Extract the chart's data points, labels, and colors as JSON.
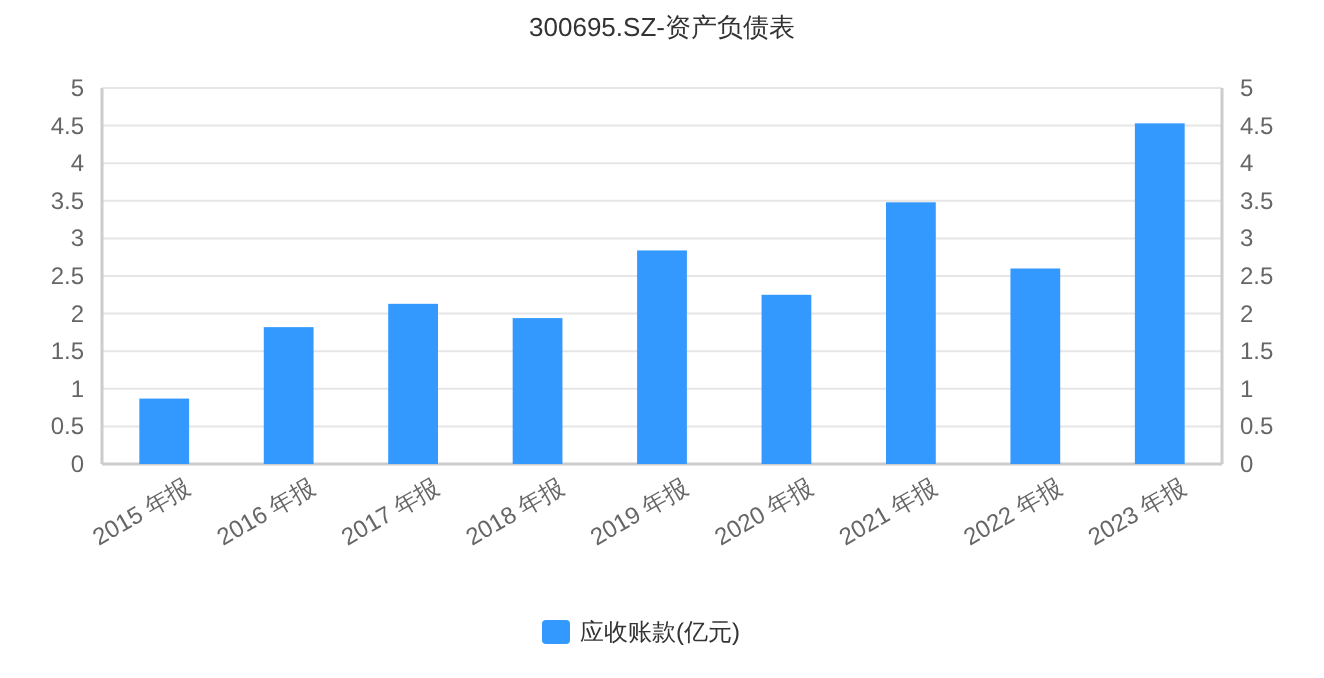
{
  "chart_data": {
    "type": "bar",
    "title": "300695.SZ-资产负债表",
    "categories": [
      "2015 年报",
      "2016 年报",
      "2017 年报",
      "2018 年报",
      "2019 年报",
      "2020 年报",
      "2021 年报",
      "2022 年报",
      "2023 年报"
    ],
    "series": [
      {
        "name": "应收账款(亿元)",
        "color": "#3399ff",
        "values": [
          0.87,
          1.82,
          2.13,
          1.94,
          2.84,
          2.25,
          3.48,
          2.6,
          4.53
        ]
      }
    ],
    "ylim": [
      0,
      5
    ],
    "yticks": [
      0,
      0.5,
      1,
      1.5,
      2,
      2.5,
      3,
      3.5,
      4,
      4.5,
      5
    ],
    "y2lim": [
      0,
      5
    ],
    "y2ticks": [
      0,
      0.5,
      1,
      1.5,
      2,
      2.5,
      3,
      3.5,
      4,
      4.5,
      5
    ],
    "grid": "y",
    "legend": "bottom"
  }
}
